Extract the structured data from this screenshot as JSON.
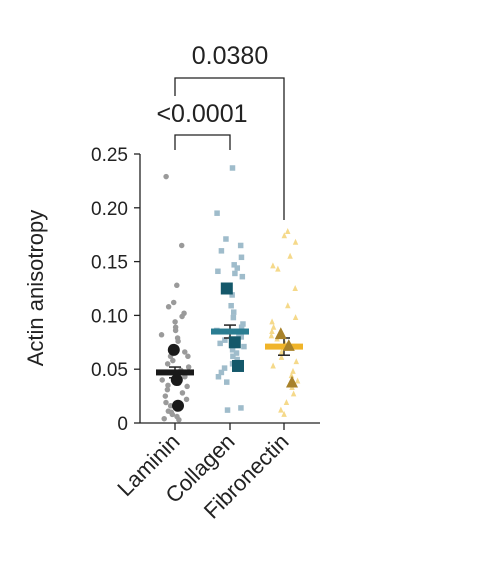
{
  "chart_data": {
    "type": "scatter",
    "ylabel": "Actin anisotropy",
    "ylim": [
      0,
      0.25
    ],
    "yticks": [
      0,
      0.05,
      0.1,
      0.15,
      0.2,
      0.25
    ],
    "ytick_labels": [
      "0",
      "0.05",
      "0.10",
      "0.15",
      "0.20",
      "0.25"
    ],
    "categories": [
      "Laminin",
      "Collagen",
      "Fibronectin"
    ],
    "groups": [
      {
        "category": "Laminin",
        "marker": "circle",
        "color_light": "#9a9a9a",
        "color_dark": "#1a1a1a",
        "points": [
          0.229,
          0.165,
          0.128,
          0.112,
          0.108,
          0.102,
          0.099,
          0.094,
          0.089,
          0.086,
          0.082,
          0.079,
          0.076,
          0.071,
          0.066,
          0.062,
          0.058,
          0.055,
          0.052,
          0.049,
          0.046,
          0.043,
          0.04,
          0.037,
          0.034,
          0.031,
          0.028,
          0.025,
          0.022,
          0.019,
          0.016,
          0.013,
          0.01,
          0.008,
          0.006,
          0.004,
          0.003,
          0.062,
          0.035,
          0.011
        ],
        "replicate_means": [
          0.068,
          0.04,
          0.016
        ],
        "mean": 0.047,
        "sem": 0.005
      },
      {
        "category": "Collagen",
        "marker": "square",
        "color_light": "#9fbccb",
        "color_dark": "#14586a",
        "accent": "#2a7d92",
        "points": [
          0.237,
          0.195,
          0.171,
          0.165,
          0.16,
          0.154,
          0.147,
          0.144,
          0.141,
          0.139,
          0.136,
          0.119,
          0.109,
          0.103,
          0.098,
          0.092,
          0.089,
          0.086,
          0.083,
          0.08,
          0.077,
          0.074,
          0.071,
          0.068,
          0.065,
          0.062,
          0.059,
          0.055,
          0.051,
          0.047,
          0.043,
          0.038,
          0.014,
          0.012
        ],
        "replicate_means": [
          0.125,
          0.075,
          0.053
        ],
        "mean": 0.085,
        "sem": 0.006
      },
      {
        "category": "Fibronectin",
        "marker": "triangle",
        "color_light": "#f5d98a",
        "color_dark": "#a8822a",
        "accent": "#f0b429",
        "points": [
          0.178,
          0.174,
          0.168,
          0.155,
          0.146,
          0.143,
          0.125,
          0.109,
          0.098,
          0.094,
          0.089,
          0.085,
          0.081,
          0.078,
          0.074,
          0.07,
          0.066,
          0.061,
          0.057,
          0.053,
          0.048,
          0.044,
          0.039,
          0.033,
          0.027,
          0.019,
          0.012,
          0.008
        ],
        "replicate_means": [
          0.083,
          0.072,
          0.038
        ],
        "mean": 0.071,
        "sem": 0.008
      }
    ],
    "comparisons": [
      {
        "from": "Laminin",
        "to": "Collagen",
        "label": "<0.0001"
      },
      {
        "from": "Laminin",
        "to": "Fibronectin",
        "label": "0.0380"
      }
    ]
  }
}
